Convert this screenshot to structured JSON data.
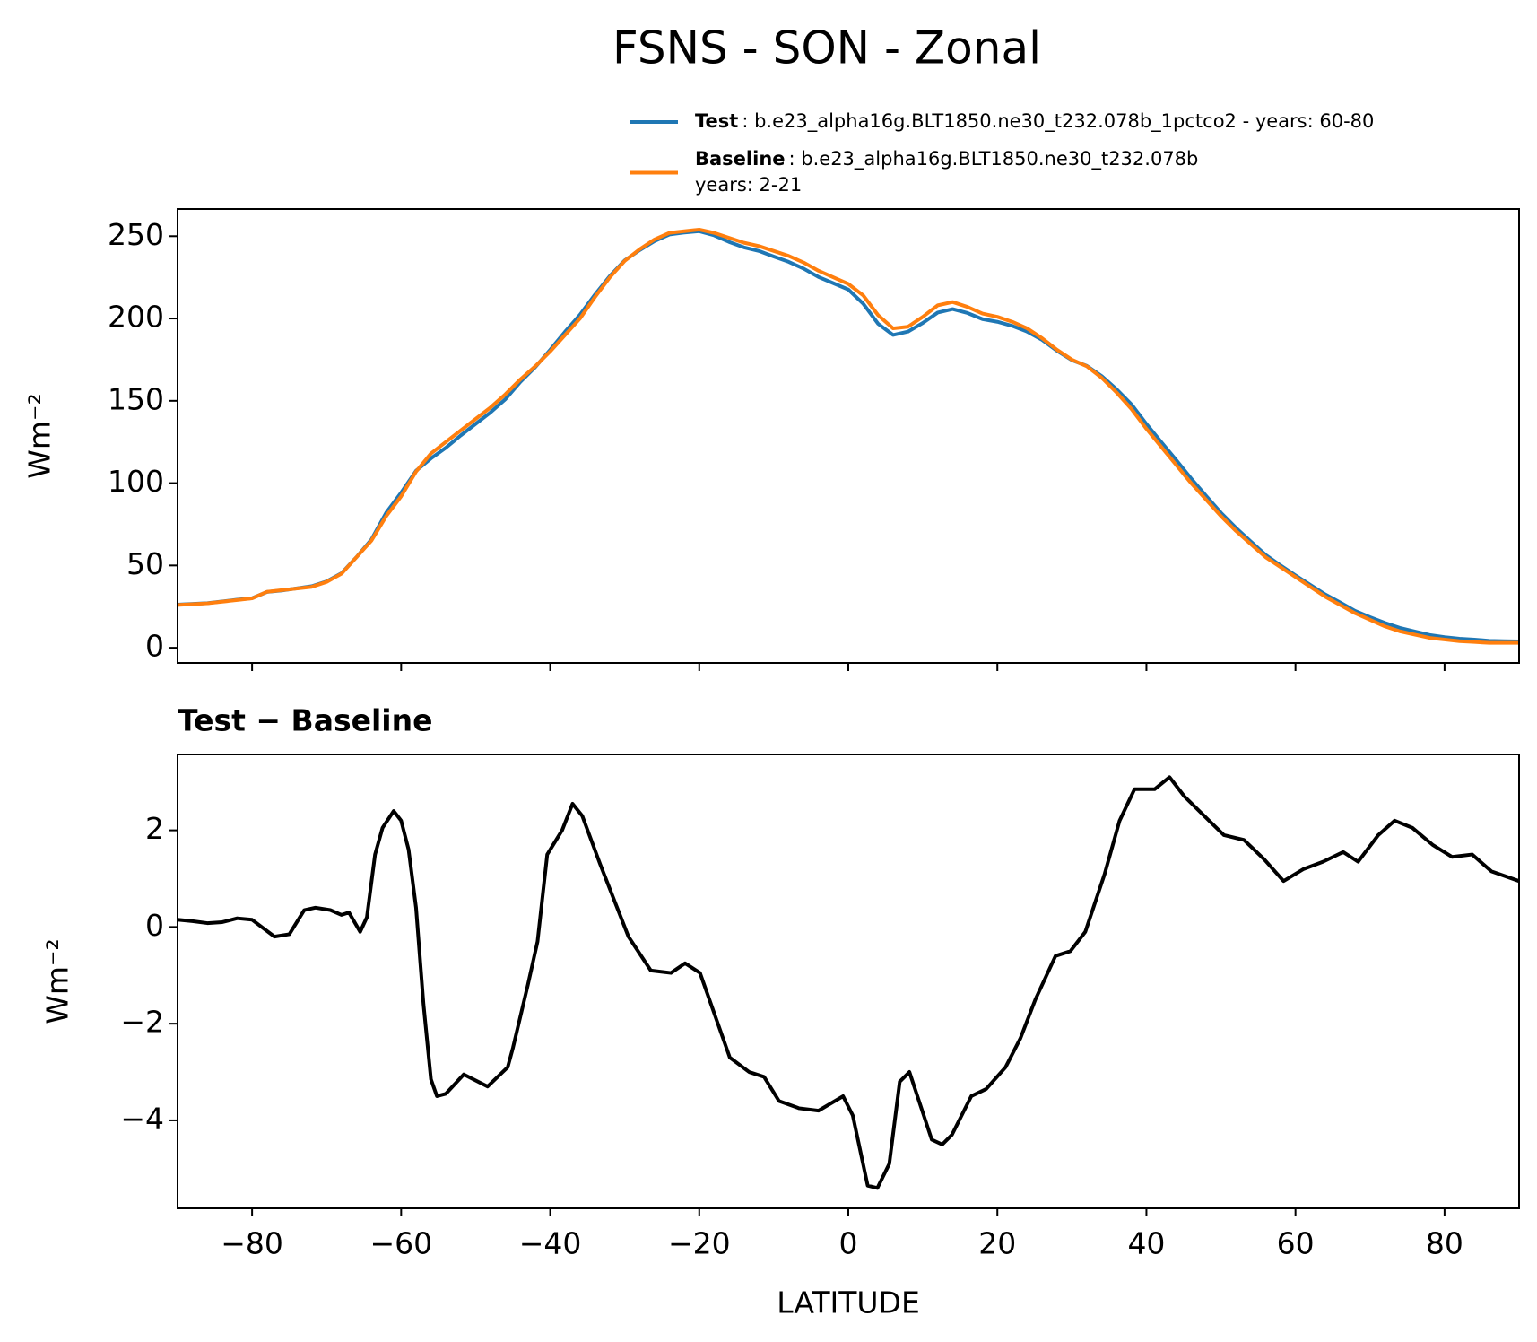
{
  "chart_data": [
    {
      "type": "line",
      "title": "FSNS - SON - Zonal",
      "ylabel": "Wm⁻²",
      "x": [
        -90,
        -86,
        -82,
        -80,
        -78,
        -76,
        -72,
        -70,
        -68,
        -66,
        -64,
        -62,
        -60,
        -58,
        -56,
        -54,
        -52,
        -50,
        -48,
        -46,
        -44,
        -42,
        -40,
        -38,
        -36,
        -34,
        -32,
        -30,
        -28,
        -26,
        -24,
        -22,
        -20,
        -18,
        -16,
        -14,
        -12,
        -10,
        -8,
        -6,
        -4,
        -2,
        0,
        2,
        4,
        6,
        8,
        10,
        12,
        14,
        16,
        18,
        20,
        22,
        24,
        26,
        28,
        30,
        32,
        34,
        36,
        38,
        40,
        42,
        44,
        46,
        48,
        50,
        52,
        54,
        56,
        58,
        60,
        62,
        64,
        66,
        68,
        70,
        72,
        74,
        76,
        78,
        80,
        82,
        84,
        86,
        88,
        90
      ],
      "series": [
        {
          "name": "Test",
          "label_lines": [
            ": b.e23_alpha16g.BLT1850.ne30_t232.078b_1pctco2 - years: 60-80"
          ],
          "color": "#1f77b4",
          "values": [
            26.2,
            27.1,
            29.2,
            30.1,
            33.9,
            34.8,
            37.4,
            40.3,
            45.3,
            55,
            65.7,
            82.1,
            94.2,
            107.5,
            115,
            121.5,
            129,
            136,
            143,
            151,
            161.5,
            170.5,
            181,
            192,
            202.3,
            214.5,
            225.8,
            235.3,
            241.5,
            247,
            251,
            252.2,
            253,
            250.5,
            246.5,
            243.2,
            241,
            237.6,
            234.4,
            230.3,
            225.2,
            221.4,
            217.6,
            209,
            196.8,
            190,
            192,
            197.3,
            203.6,
            205.7,
            203.3,
            199.6,
            198,
            195.5,
            192,
            187,
            180.4,
            174.7,
            171.2,
            165,
            157,
            147.8,
            135.9,
            124.9,
            114,
            102.8,
            92.3,
            82,
            72.9,
            64.6,
            56.4,
            50,
            44,
            38.2,
            32.4,
            27.5,
            22.4,
            18.6,
            15.1,
            12.1,
            9.9,
            7.8,
            6.5,
            5.5,
            5,
            4.2,
            4,
            3.9
          ]
        },
        {
          "name": "Baseline",
          "label_lines": [
            ": b.e23_alpha16g.BLT1850.ne30_t232.078b",
            "years: 2-21"
          ],
          "color": "#ff7f0e",
          "values": [
            26,
            27,
            29,
            30,
            34,
            35,
            37,
            40,
            45,
            55,
            65,
            80,
            92,
            107,
            118,
            125,
            132,
            139,
            146,
            154,
            163,
            171,
            180,
            190,
            200,
            213,
            225,
            235,
            242,
            248,
            252,
            253,
            254,
            252,
            249,
            246,
            244,
            241,
            238,
            234,
            229,
            225,
            221,
            214,
            202,
            194,
            195,
            201,
            208,
            210,
            207,
            203,
            201,
            198,
            194,
            188,
            181,
            175,
            171,
            164,
            155,
            145,
            133,
            122,
            111,
            100,
            90,
            80,
            71,
            63,
            55,
            49,
            43,
            37,
            31,
            26,
            21,
            17,
            13,
            10,
            8,
            6,
            5,
            4,
            3.5,
            3,
            3,
            3
          ]
        }
      ],
      "xlim": [
        -90,
        90
      ],
      "ylim": [
        -9.2,
        266.5
      ],
      "yticks": [
        0,
        50,
        100,
        150,
        200,
        250
      ]
    },
    {
      "type": "line",
      "title": "Test − Baseline",
      "ylabel": "Wm⁻²",
      "xlabel": "LATITUDE",
      "x": [
        -90,
        -88,
        -86,
        -84,
        -82,
        -80,
        -77,
        -75,
        -73,
        -71.5,
        -69.5,
        -68,
        -67,
        -65.5,
        -64.6,
        -63.5,
        -62.5,
        -61,
        -60,
        -59,
        -58,
        -57,
        -56,
        -55.2,
        -54,
        -51.6,
        -48.4,
        -45.7,
        -45,
        -43,
        -41.7,
        -40.4,
        -38.4,
        -37,
        -35.7,
        -33.3,
        -29.5,
        -26.5,
        -23.8,
        -21.9,
        -19.9,
        -15.9,
        -13.3,
        -11.3,
        -9.3,
        -6.6,
        -4,
        -0.7,
        0.6,
        2.6,
        3.9,
        5.5,
        6.9,
        8.2,
        11.2,
        12.6,
        13.9,
        16.5,
        18.5,
        21.1,
        23.1,
        25.1,
        27.8,
        29.8,
        31.8,
        34.4,
        36.4,
        38.4,
        41.1,
        43.1,
        45.1,
        48.4,
        50.4,
        53.1,
        55.8,
        58.4,
        61.1,
        63.7,
        66.4,
        68.4,
        71.1,
        73.3,
        75.7,
        78.4,
        81,
        83.7,
        86.3,
        90
      ],
      "series": [
        {
          "name": "Test − Baseline",
          "color": "#000000",
          "values": [
            0.15,
            0.12,
            0.08,
            0.1,
            0.18,
            0.15,
            -0.2,
            -0.15,
            0.35,
            0.4,
            0.35,
            0.25,
            0.3,
            -0.1,
            0.2,
            1.5,
            2.05,
            2.4,
            2.2,
            1.6,
            0.4,
            -1.6,
            -3.15,
            -3.5,
            -3.45,
            -3.05,
            -3.3,
            -2.9,
            -2.5,
            -1.2,
            -0.3,
            1.5,
            2,
            2.55,
            2.3,
            1.3,
            -0.2,
            -0.9,
            -0.95,
            -0.75,
            -0.95,
            -2.7,
            -3,
            -3.1,
            -3.6,
            -3.75,
            -3.8,
            -3.5,
            -3.9,
            -5.35,
            -5.4,
            -4.9,
            -3.2,
            -3,
            -4.4,
            -4.5,
            -4.3,
            -3.5,
            -3.35,
            -2.9,
            -2.3,
            -1.5,
            -0.6,
            -0.5,
            -0.1,
            1.1,
            2.2,
            2.85,
            2.85,
            3.1,
            2.7,
            2.2,
            1.9,
            1.8,
            1.4,
            0.95,
            1.2,
            1.35,
            1.55,
            1.35,
            1.9,
            2.2,
            2.05,
            1.7,
            1.45,
            1.5,
            1.15,
            0.95
          ]
        }
      ],
      "xlim": [
        -90,
        90
      ],
      "ylim": [
        -5.82,
        3.57
      ],
      "yticks": [
        {
          "value": -4,
          "label": "−4"
        },
        {
          "value": -2,
          "label": "−2"
        },
        0,
        2
      ],
      "xticks": [
        {
          "value": -80,
          "label": "−80"
        },
        {
          "value": -60,
          "label": "−60"
        },
        {
          "value": -40,
          "label": "−40"
        },
        {
          "value": -20,
          "label": "−20"
        },
        0,
        20,
        40,
        60,
        80
      ]
    }
  ]
}
